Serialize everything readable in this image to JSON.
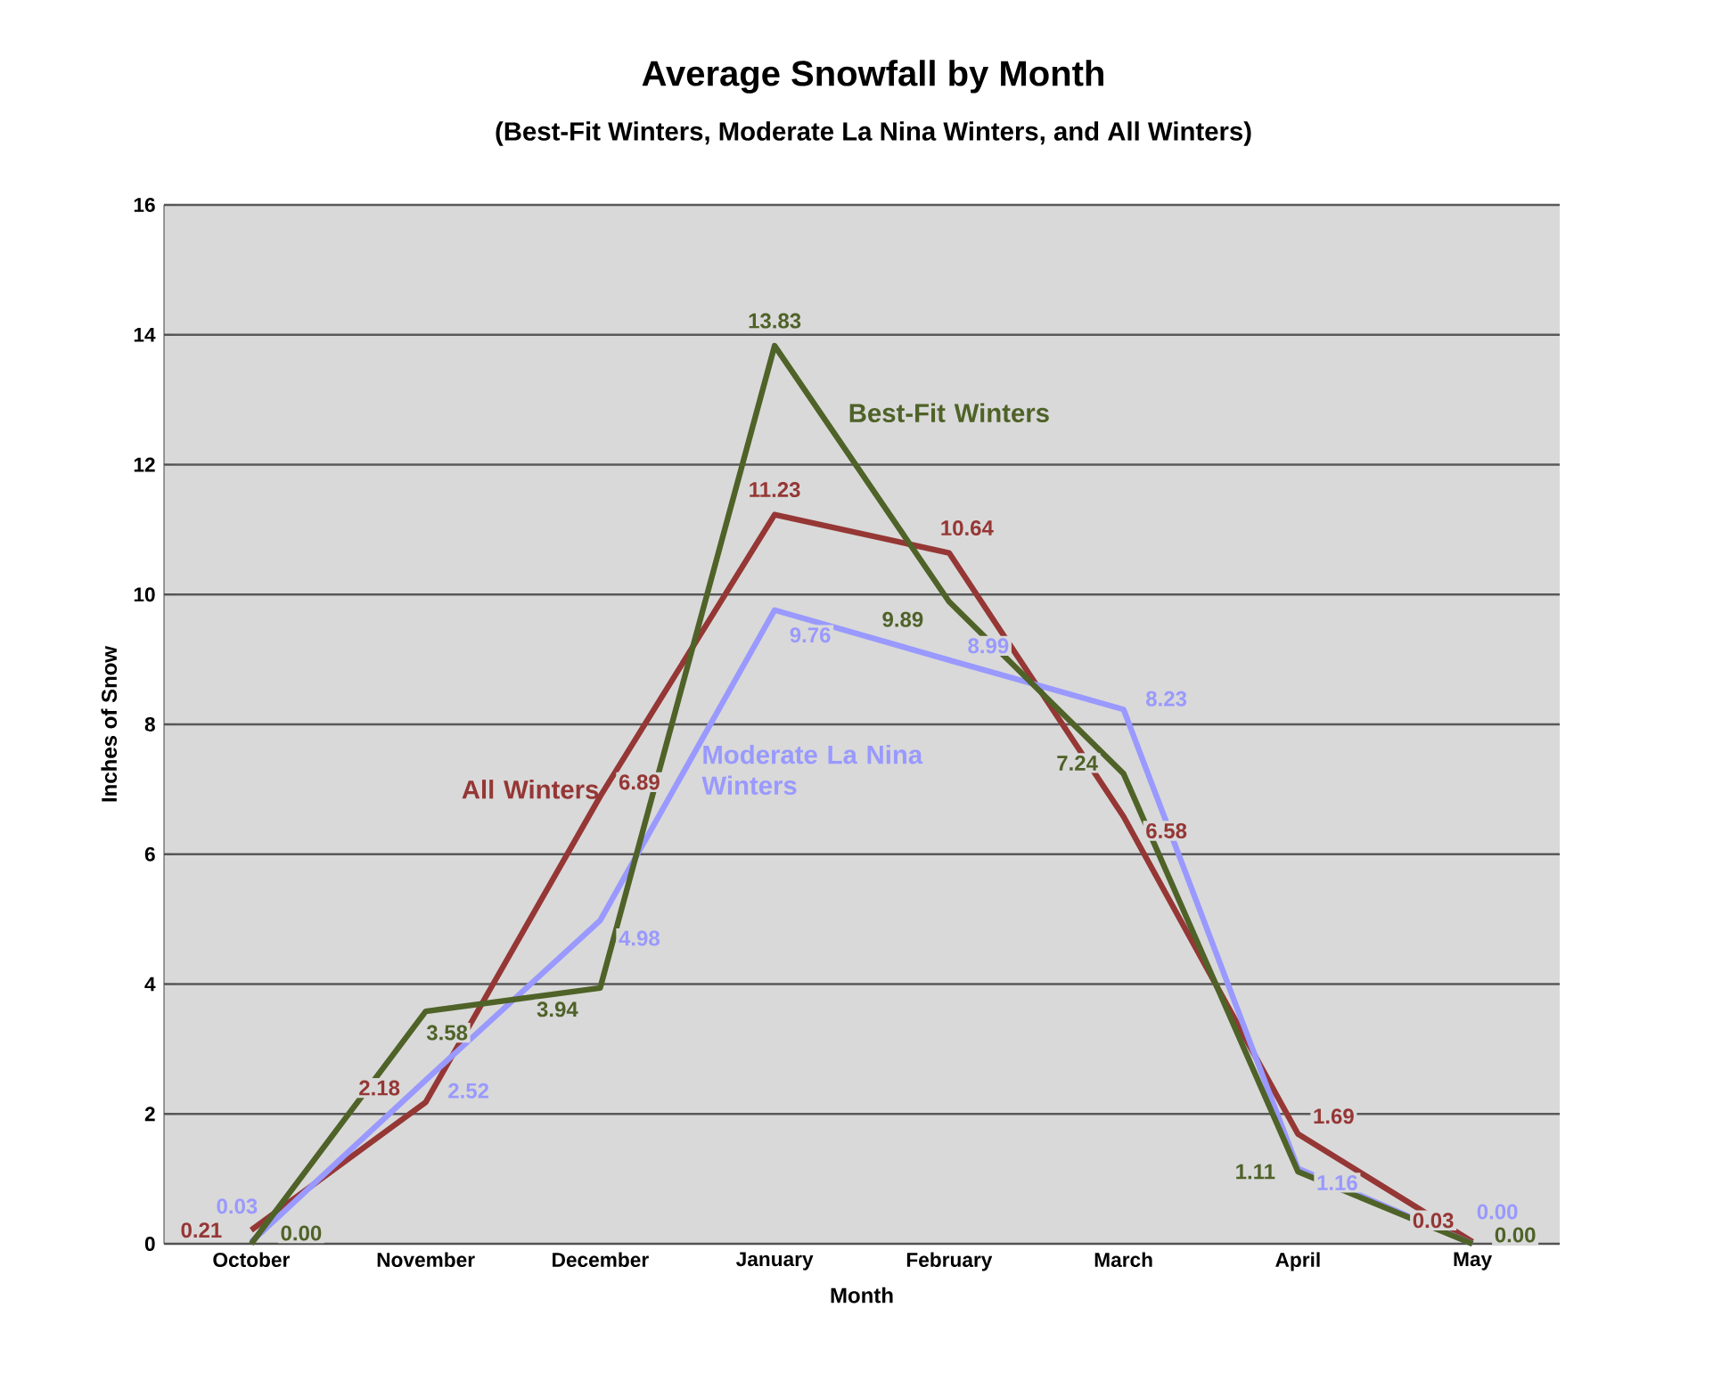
{
  "chart_data": {
    "type": "line",
    "title": "Average Snowfall by Month",
    "subtitle": "(Best-Fit Winters, Moderate La Nina Winters, and All Winters)",
    "xlabel": "Month",
    "ylabel": "Inches of Snow",
    "categories": [
      "October",
      "November",
      "December",
      "January",
      "February",
      "March",
      "April",
      "May"
    ],
    "series": [
      {
        "name": "All Winters",
        "color": "#953735",
        "values": [
          0.21,
          2.18,
          6.89,
          11.23,
          10.64,
          6.58,
          1.69,
          0.03
        ],
        "value_labels": [
          "0.21",
          "2.18",
          "6.89",
          "11.23",
          "10.64",
          "6.58",
          "1.69",
          "0.03"
        ]
      },
      {
        "name": "Moderate La Nina Winters",
        "color": "#9999ff",
        "values": [
          0.03,
          2.52,
          4.98,
          9.76,
          8.99,
          8.23,
          1.16,
          0.0
        ],
        "value_labels": [
          "0.03",
          "2.52",
          "4.98",
          "9.76",
          "8.99",
          "8.23",
          "1.16",
          "0.00"
        ]
      },
      {
        "name": "Best-Fit Winters",
        "color": "#4f6228",
        "values": [
          0.0,
          3.58,
          3.94,
          13.83,
          9.89,
          7.24,
          1.11,
          0.0
        ],
        "value_labels": [
          "0.00",
          "3.58",
          "3.94",
          "13.83",
          "9.89",
          "7.24",
          "1.11",
          "0.00"
        ]
      }
    ],
    "ylim": [
      0,
      16
    ],
    "yticks": [
      0,
      2,
      4,
      6,
      8,
      10,
      12,
      14,
      16
    ],
    "grid": "y",
    "legend": false,
    "marker": "none",
    "line_style": "solid"
  }
}
